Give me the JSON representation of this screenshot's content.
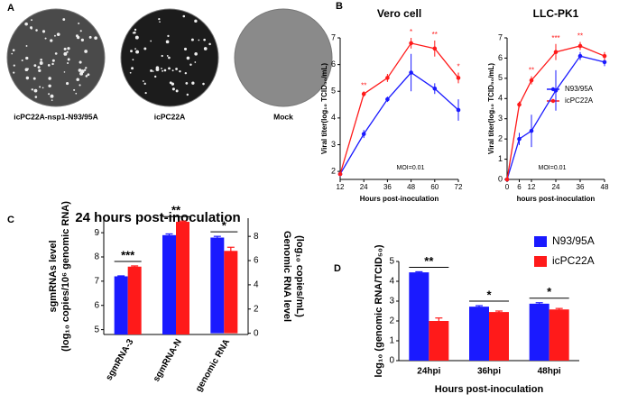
{
  "panel_a": {
    "label": "A",
    "captions": [
      "icPC22A-nsp1-N93/95A",
      "icPC22A",
      "Mock"
    ]
  },
  "chart_data": [
    {
      "panel": "B",
      "type": "line",
      "title": "Vero cell",
      "x": [
        12,
        24,
        36,
        48,
        60,
        72
      ],
      "xlim": [
        12,
        72
      ],
      "xticks": [
        12,
        24,
        36,
        48,
        60,
        72
      ],
      "ylim": [
        1.7,
        7
      ],
      "yticks": [
        2,
        3,
        4,
        5,
        6,
        7
      ],
      "xlabel": "Hours post-inoculation",
      "ylabel": [
        "Viral titer(log₁₀ TCID₅₀/mL)"
      ],
      "annotation": "MOI=0.01",
      "series": [
        {
          "color": "#1a1aff",
          "values": [
            1.9,
            3.4,
            4.7,
            5.7,
            5.1,
            4.3
          ],
          "errors": [
            0.1,
            0.15,
            0.1,
            0.7,
            0.2,
            0.4
          ]
        },
        {
          "color": "#ff1a1a",
          "values": [
            1.9,
            4.9,
            5.5,
            6.8,
            6.6,
            5.5
          ],
          "errors": [
            0.05,
            0.1,
            0.15,
            0.2,
            0.3,
            0.2
          ]
        }
      ],
      "significance": [
        null,
        "**",
        null,
        "*",
        "**",
        "*"
      ]
    },
    {
      "type": "line",
      "title": "LLC-PK1",
      "x": [
        0,
        6,
        12,
        24,
        36,
        48
      ],
      "xlim": [
        0,
        48
      ],
      "xticks": [
        0,
        6,
        12,
        24,
        36,
        48
      ],
      "ylim": [
        0,
        7
      ],
      "yticks": [
        0,
        1,
        2,
        3,
        4,
        5,
        6,
        7
      ],
      "xlabel": "hours post-inoculation",
      "ylabel": [
        "Viral titer(log₁₀ TCID₅₀/mL)"
      ],
      "annotation": "MOI=0.01",
      "series": [
        {
          "name": "N93/95A",
          "color": "#1a1aff",
          "values": [
            0,
            2,
            2.4,
            4.4,
            6.1,
            5.8
          ],
          "errors": [
            0,
            0.3,
            0.8,
            1.0,
            0.2,
            0.2
          ]
        },
        {
          "name": "icPC22A",
          "color": "#ff1a1a",
          "values": [
            0,
            3.7,
            4.9,
            6.3,
            6.6,
            6.1
          ],
          "errors": [
            0,
            0.15,
            0.2,
            0.4,
            0.2,
            0.2
          ]
        }
      ],
      "significance": [
        null,
        null,
        "**",
        "***",
        "**",
        null
      ]
    },
    {
      "panel": "C",
      "type": "bar",
      "title": "24 hours post-inoculation",
      "categories": [
        "sgmRNA-3",
        "sgmRNA-N",
        "genomic RNA"
      ],
      "ylim": [
        4.8,
        9.6
      ],
      "yticks": [
        5,
        6,
        7,
        8,
        9
      ],
      "y2lim": [
        -0.1,
        9.5
      ],
      "y2ticks": [
        0,
        2,
        4,
        6,
        8
      ],
      "ylabel": [
        "sgmRNAs level",
        "(log₁₀ copies/10⁶ genomic RNA)"
      ],
      "y2label": [
        "Genomic RNA level",
        "(log₁₀ copies/mL)"
      ],
      "series": [
        {
          "color": "#1a1aff",
          "values": [
            7.2,
            8.9,
            null
          ],
          "errors": [
            0.02,
            0.05,
            null
          ]
        },
        {
          "color": "#ff1a1a",
          "values": [
            7.6,
            9.45,
            null
          ],
          "errors": [
            0.03,
            0.03,
            null
          ]
        },
        {
          "color": "#1a1aff",
          "axis": "y2",
          "values": [
            null,
            null,
            7.9
          ],
          "errors": [
            null,
            null,
            0.1
          ]
        },
        {
          "color": "#ff1a1a",
          "axis": "y2",
          "values": [
            null,
            null,
            6.8
          ],
          "errors": [
            null,
            null,
            0.3
          ]
        }
      ],
      "significance": [
        "***",
        "**",
        "*"
      ]
    },
    {
      "panel": "D",
      "type": "bar",
      "categories": [
        "24hpi",
        "36hpi",
        "48hpi"
      ],
      "ylim": [
        0,
        5
      ],
      "yticks": [
        0,
        1,
        2,
        3,
        4,
        5
      ],
      "xlabel": "Hours post-inoculation",
      "ylabel": [
        "log₁₀ (genomic RNA/TCID₅₀)"
      ],
      "series": [
        {
          "name": "N93/95A",
          "color": "#1a1aff",
          "values": [
            4.45,
            2.72,
            2.87
          ],
          "errors": [
            0.03,
            0.05,
            0.05
          ]
        },
        {
          "name": "icPC22A",
          "color": "#ff1a1a",
          "values": [
            2.0,
            2.45,
            2.58
          ],
          "errors": [
            0.15,
            0.05,
            0.05
          ]
        }
      ],
      "significance": [
        "**",
        "*",
        "*"
      ]
    }
  ]
}
